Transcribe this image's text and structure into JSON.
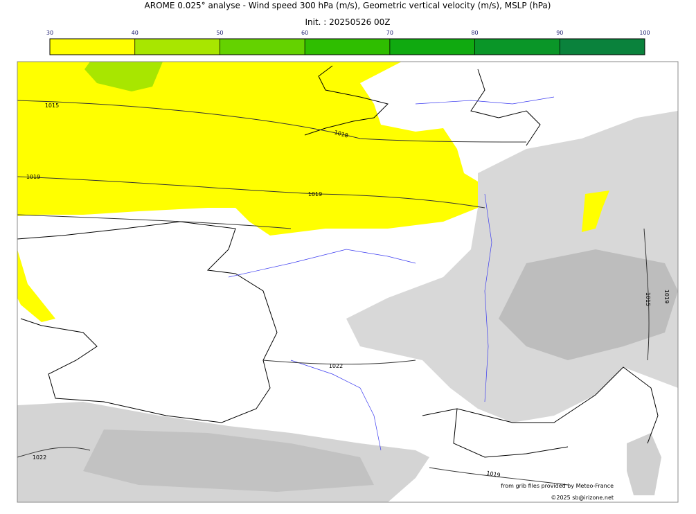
{
  "header": {
    "title": "AROME 0.025° analyse - Wind speed 300 hPa (m/s), Geometric vertical velocity (m/s), MSLP (hPa)",
    "init": "Init. : 20250526 00Z"
  },
  "colorbar": {
    "ticks": [
      30,
      40,
      50,
      60,
      70,
      80,
      90,
      100
    ],
    "colors": [
      "#ffff00",
      "#a8e600",
      "#64d200",
      "#2fbe00",
      "#10aa10",
      "#0a9628",
      "#0a823c",
      "#087850"
    ]
  },
  "map": {
    "isobar_labels": [
      "1015",
      "1019",
      "1018",
      "1019",
      "1022",
      "1022",
      "1019",
      "1015",
      "1019"
    ]
  },
  "footer": {
    "source": "from grib files provided by Meteo-France",
    "copyright": "©2025 sb@irizone.net"
  }
}
